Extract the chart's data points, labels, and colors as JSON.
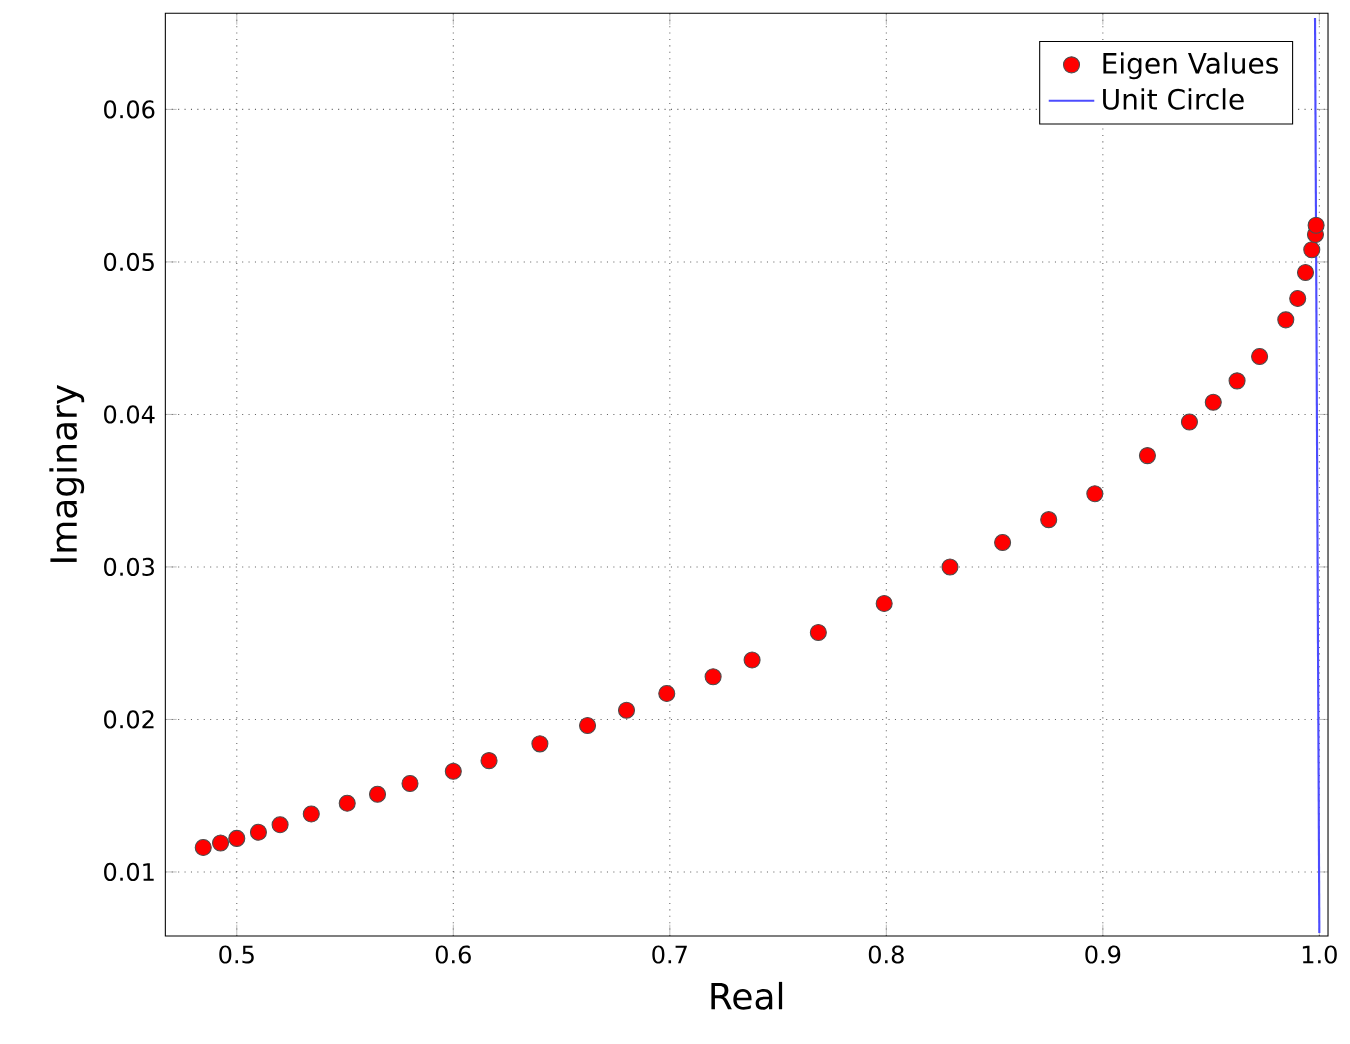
{
  "chart_data": {
    "type": "scatter",
    "xlabel": "Real",
    "ylabel": "Imaginary",
    "xlim": [
      0.467,
      1.004
    ],
    "ylim": [
      0.0058,
      0.0663
    ],
    "xticks": [
      0.5,
      0.6,
      0.7,
      0.8,
      0.9,
      {
        "value": 1.0,
        "label": "1.0"
      }
    ],
    "yticks": [
      0.01,
      0.02,
      0.03,
      0.04,
      0.05,
      0.06
    ],
    "grid": true,
    "legend": "top right",
    "series": [
      {
        "name": "Eigen Values",
        "marker": "circle",
        "color": "#ff0000",
        "x": [
          0.4845,
          0.4925,
          0.5,
          0.51,
          0.52,
          0.5344,
          0.551,
          0.565,
          0.58,
          0.6,
          0.6165,
          0.64,
          0.662,
          0.68,
          0.6986,
          0.72,
          0.738,
          0.7686,
          0.799,
          0.8294,
          0.8537,
          0.875,
          0.8963,
          0.9206,
          0.94,
          0.951,
          0.962,
          0.9724,
          0.9845,
          0.99,
          0.9936,
          0.9965,
          0.9982,
          0.9985
        ],
        "values": [
          0.0116,
          0.0119,
          0.0122,
          0.0126,
          0.0131,
          0.0138,
          0.0145,
          0.0151,
          0.0158,
          0.0166,
          0.0173,
          0.0184,
          0.0196,
          0.0206,
          0.0217,
          0.0228,
          0.0239,
          0.0257,
          0.0276,
          0.03,
          0.0316,
          0.0331,
          0.0348,
          0.0373,
          0.0395,
          0.0408,
          0.0422,
          0.0438,
          0.0462,
          0.0476,
          0.0493,
          0.0508,
          0.0518,
          0.0524
        ]
      },
      {
        "name": "Unit Circle",
        "type": "line",
        "color": "#4c4cff",
        "x": [
          1.0,
          0.998
        ],
        "values": [
          0.006,
          0.066
        ]
      }
    ]
  }
}
